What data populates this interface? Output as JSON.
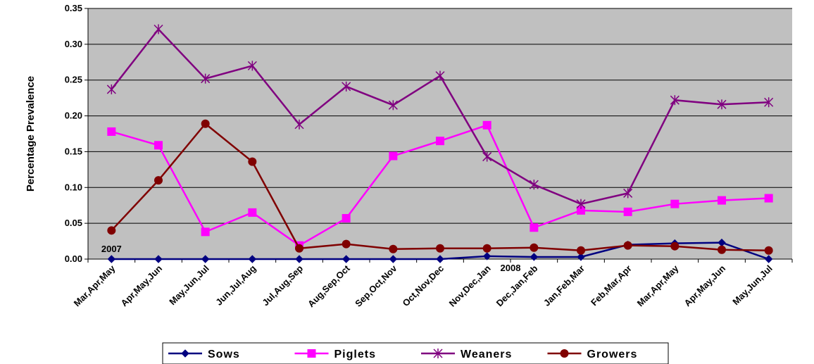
{
  "chart_data": {
    "type": "line",
    "ylabel": "Percentage Prevalence",
    "xlabel": "",
    "title": "",
    "ylim": [
      0,
      0.35
    ],
    "yticks": [
      "0.00",
      "0.05",
      "0.10",
      "0.15",
      "0.20",
      "0.25",
      "0.30",
      "0.35"
    ],
    "categories": [
      "Mar,Apr,May",
      "Apr,May,Jun",
      "May,Jun,Jul",
      "Jun,Jul,Aug",
      "Jul,Aug,Sep",
      "Aug,Sep,Oct",
      "Sep,Oct,Nov",
      "Oct,Nov,Dec",
      "Nov,Dec,Jan",
      "Dec,Jan,Feb",
      "Jan,Feb,Mar",
      "Feb,Mar,Apr",
      "Mar,Apr,May",
      "Apr,May,Jun",
      "May,Jun,Jul"
    ],
    "annotations": [
      {
        "text": "2007",
        "category_index": 0
      },
      {
        "text": "2008",
        "category_index": 8.5
      }
    ],
    "grid": true,
    "plot_background": "#c0c0c0",
    "legend_position": "bottom",
    "series": [
      {
        "name": "Sows",
        "color": "#000080",
        "marker": "diamond",
        "values": [
          0.0,
          0.0,
          0.0,
          0.0,
          0.0,
          0.0,
          0.0,
          0.0,
          0.004,
          0.003,
          0.003,
          0.02,
          0.022,
          0.023,
          0.0
        ]
      },
      {
        "name": "Piglets",
        "color": "#ff00ff",
        "marker": "square",
        "values": [
          0.178,
          0.159,
          0.038,
          0.065,
          0.019,
          0.057,
          0.144,
          0.165,
          0.187,
          0.044,
          0.068,
          0.066,
          0.077,
          0.082,
          0.085
        ]
      },
      {
        "name": "Weaners",
        "color": "#800080",
        "marker": "asterisk",
        "values": [
          0.237,
          0.321,
          0.252,
          0.27,
          0.188,
          0.241,
          0.215,
          0.256,
          0.143,
          0.104,
          0.077,
          0.092,
          0.222,
          0.216,
          0.219
        ]
      },
      {
        "name": "Growers",
        "color": "#800000",
        "marker": "circle",
        "values": [
          0.04,
          0.11,
          0.189,
          0.136,
          0.015,
          0.021,
          0.014,
          0.015,
          0.015,
          0.016,
          0.012,
          0.019,
          0.018,
          0.013,
          0.012
        ]
      }
    ]
  }
}
